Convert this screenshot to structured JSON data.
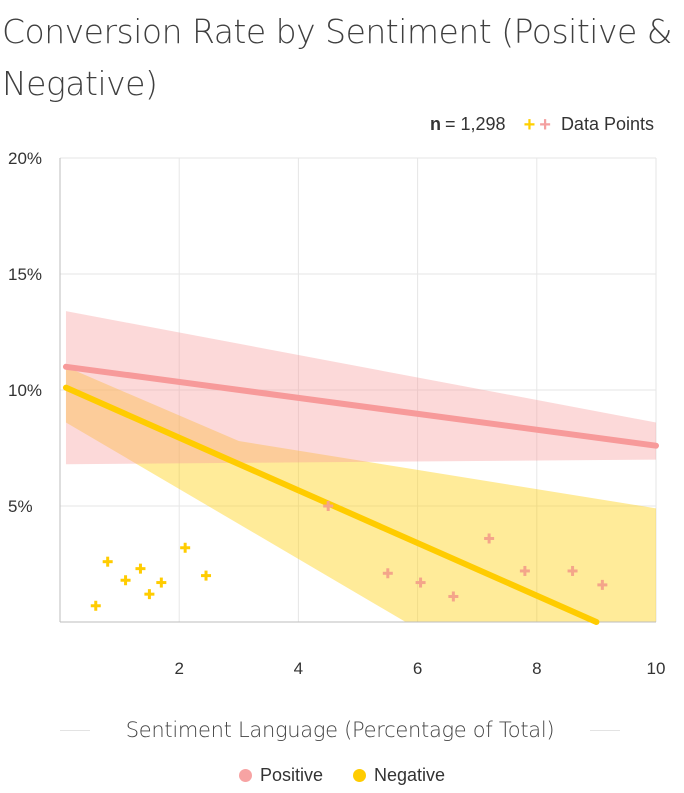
{
  "chart_data": {
    "type": "scatter",
    "title": "Conversion Rate by Sentiment (Positive & Negative)",
    "xlabel": "Sentiment Language (Percentage of Total)",
    "ylabel": "",
    "xlim": [
      0,
      10
    ],
    "ylim": [
      0,
      20
    ],
    "x_ticks": [
      2,
      4,
      6,
      8,
      10
    ],
    "y_ticks": [
      5,
      10,
      15,
      20
    ],
    "y_tick_labels": [
      "5%",
      "10%",
      "15%",
      "20%"
    ],
    "n_label": "n",
    "n_value": "= 1,298",
    "points_legend_label": "Data Points",
    "grid": true,
    "legend_position": "bottom",
    "series": [
      {
        "name": "Positive",
        "color": "#f79a9a",
        "points": [
          [
            4.5,
            5.0
          ],
          [
            5.5,
            2.1
          ],
          [
            6.05,
            1.7
          ],
          [
            6.6,
            1.1
          ],
          [
            7.2,
            3.6
          ],
          [
            7.8,
            2.2
          ],
          [
            8.6,
            2.2
          ],
          [
            9.1,
            1.6
          ]
        ],
        "trend": [
          [
            0.1,
            11.0
          ],
          [
            10.0,
            7.6
          ]
        ],
        "band_upper": [
          [
            0.1,
            13.4
          ],
          [
            10.0,
            8.6
          ]
        ],
        "band_lower": [
          [
            0.1,
            6.8
          ],
          [
            10.0,
            7.0
          ]
        ]
      },
      {
        "name": "Negative",
        "color": "#ffcc00",
        "points": [
          [
            0.6,
            0.7
          ],
          [
            0.8,
            2.6
          ],
          [
            1.1,
            1.8
          ],
          [
            1.35,
            2.3
          ],
          [
            1.5,
            1.2
          ],
          [
            1.7,
            1.7
          ],
          [
            2.1,
            3.2
          ],
          [
            2.45,
            2.0
          ]
        ],
        "trend": [
          [
            0.1,
            10.1
          ],
          [
            9.0,
            0.0
          ]
        ],
        "band_upper": [
          [
            0.1,
            11.0
          ],
          [
            3.0,
            7.8
          ],
          [
            10.0,
            4.9
          ]
        ],
        "band_lower": [
          [
            0.1,
            8.6
          ],
          [
            5.8,
            0.0
          ],
          [
            10.0,
            0.0
          ]
        ]
      }
    ]
  }
}
